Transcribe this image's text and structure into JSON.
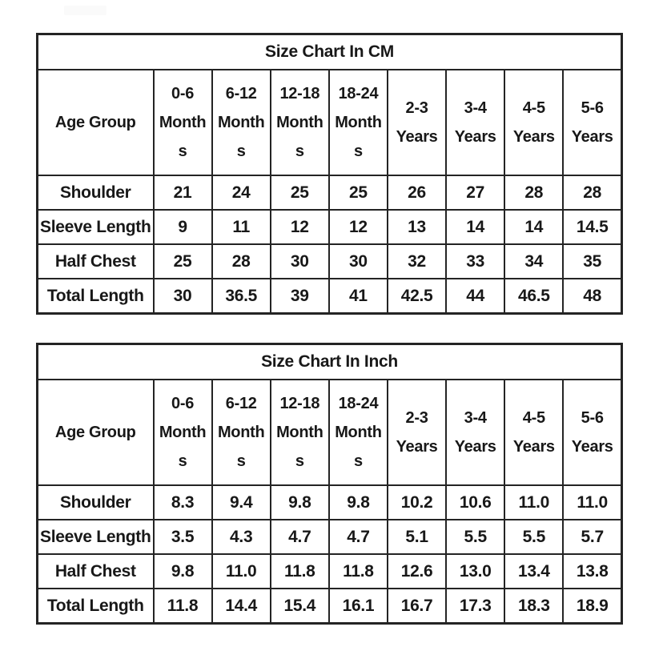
{
  "colors": {
    "background": "#ffffff",
    "border": "#242424",
    "text": "#181818",
    "watermark": "#fafafa"
  },
  "chart_data": [
    {
      "type": "table",
      "title": "Size Chart In CM",
      "unit": "cm",
      "columns": [
        "Age Group",
        "0-6 Months",
        "6-12 Months",
        "12-18 Months",
        "18-24 Months",
        "2-3 Years",
        "3-4 Years",
        "4-5 Years",
        "5-6 Years"
      ],
      "rows": [
        {
          "label": "Shoulder",
          "values": [
            "21",
            "24",
            "25",
            "25",
            "26",
            "27",
            "28",
            "28"
          ]
        },
        {
          "label": "Sleeve Length",
          "values": [
            "9",
            "11",
            "12",
            "12",
            "13",
            "14",
            "14",
            "14.5"
          ]
        },
        {
          "label": "Half Chest",
          "values": [
            "25",
            "28",
            "30",
            "30",
            "32",
            "33",
            "34",
            "35"
          ]
        },
        {
          "label": "Total Length",
          "values": [
            "30",
            "36.5",
            "39",
            "41",
            "42.5",
            "44",
            "46.5",
            "48"
          ]
        }
      ]
    },
    {
      "type": "table",
      "title": "Size Chart In Inch",
      "unit": "inch",
      "columns": [
        "Age Group",
        "0-6 Months",
        "6-12 Months",
        "12-18 Months",
        "18-24 Months",
        "2-3 Years",
        "3-4 Years",
        "4-5 Years",
        "5-6 Years"
      ],
      "rows": [
        {
          "label": "Shoulder",
          "values": [
            "8.3",
            "9.4",
            "9.8",
            "9.8",
            "10.2",
            "10.6",
            "11.0",
            "11.0"
          ]
        },
        {
          "label": "Sleeve Length",
          "values": [
            "3.5",
            "4.3",
            "4.7",
            "4.7",
            "5.1",
            "5.5",
            "5.5",
            "5.7"
          ]
        },
        {
          "label": "Half Chest",
          "values": [
            "9.8",
            "11.0",
            "11.8",
            "11.8",
            "12.6",
            "13.0",
            "13.4",
            "13.8"
          ]
        },
        {
          "label": "Total Length",
          "values": [
            "11.8",
            "14.4",
            "15.4",
            "16.1",
            "16.7",
            "17.3",
            "18.3",
            "18.9"
          ]
        }
      ]
    }
  ]
}
